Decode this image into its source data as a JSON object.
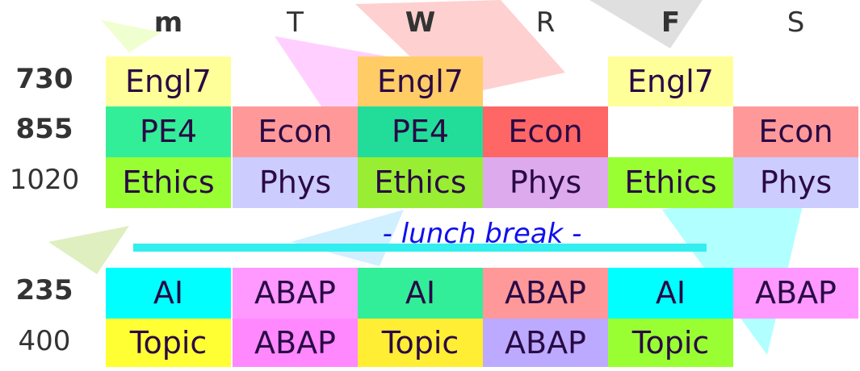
{
  "days": [
    "m",
    "T",
    "W",
    "R",
    "F",
    "S"
  ],
  "times": [
    "730",
    "855",
    "1020",
    "235",
    "400"
  ],
  "lunch_label": "- lunch break -",
  "rows": [
    [
      {
        "t": "Engl7",
        "c": "#ffff99"
      },
      {
        "t": "",
        "c": ""
      },
      {
        "t": "Engl7",
        "c": "#ffcc66"
      },
      {
        "t": "",
        "c": ""
      },
      {
        "t": "Engl7",
        "c": "#ffff99"
      },
      {
        "t": "",
        "c": ""
      }
    ],
    [
      {
        "t": "PE4",
        "c": "#33ee99"
      },
      {
        "t": "Econ",
        "c": "#ff9999"
      },
      {
        "t": "PE4",
        "c": "#22dd99"
      },
      {
        "t": "Econ",
        "c": "#ff6666"
      },
      {
        "t": "",
        "c": ""
      },
      {
        "t": "Econ",
        "c": "#ff9999"
      }
    ],
    [
      {
        "t": "Ethics",
        "c": "#99ff33"
      },
      {
        "t": "Phys",
        "c": "#ccccff"
      },
      {
        "t": "Ethics",
        "c": "#99ee33"
      },
      {
        "t": "Phys",
        "c": "#ddaaee"
      },
      {
        "t": "Ethics",
        "c": "#99ff33"
      },
      {
        "t": "Phys",
        "c": "#ccccff"
      }
    ],
    [
      {
        "t": "AI",
        "c": "#00ffff"
      },
      {
        "t": "ABAP",
        "c": "#ff99ff"
      },
      {
        "t": "AI",
        "c": "#33ee99"
      },
      {
        "t": "ABAP",
        "c": "#ff9999"
      },
      {
        "t": "AI",
        "c": "#00ffff"
      },
      {
        "t": "ABAP",
        "c": "#ff99ff"
      }
    ],
    [
      {
        "t": "Topic",
        "c": "#ffff33"
      },
      {
        "t": "ABAP",
        "c": "#ff88ff"
      },
      {
        "t": "Topic",
        "c": "#ffee33"
      },
      {
        "t": "ABAP",
        "c": "#bbaaff"
      },
      {
        "t": "Topic",
        "c": "#99ff33"
      },
      {
        "t": "",
        "c": ""
      }
    ]
  ]
}
